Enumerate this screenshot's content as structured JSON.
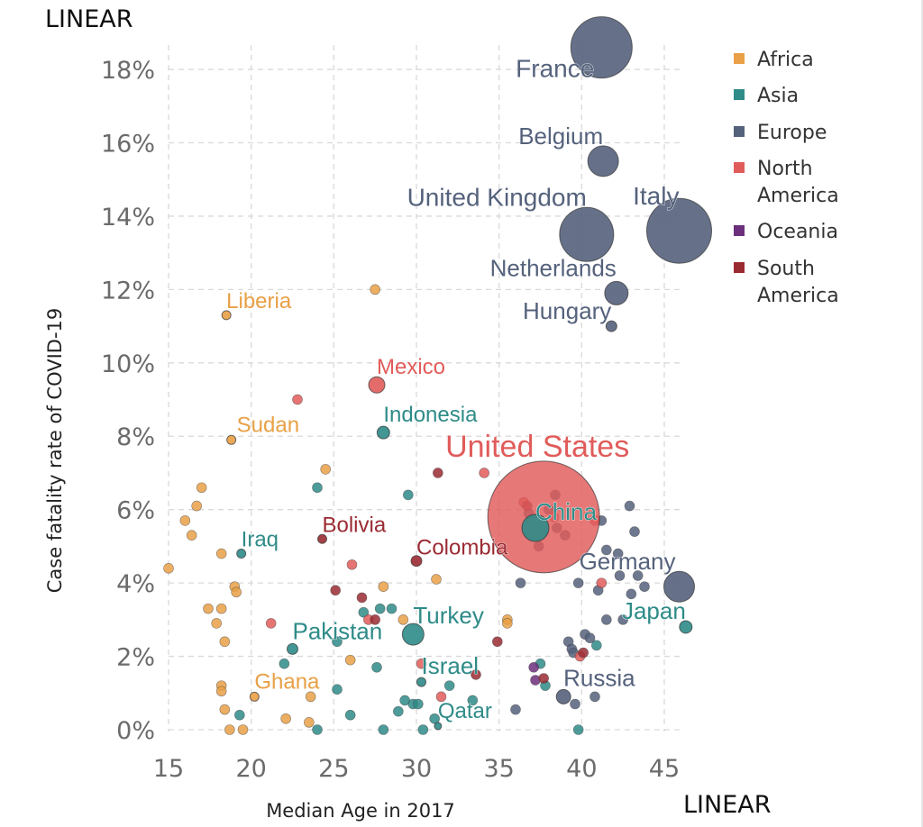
{
  "chart_data": {
    "type": "scatter",
    "xlabel": "Median Age in 2017",
    "ylabel": "Case fatality rate of COVID-19",
    "x_scale_label": "LINEAR",
    "y_scale_label": "LINEAR",
    "xlim": [
      15,
      46.5
    ],
    "ylim": [
      0,
      18.5
    ],
    "x_ticks": [
      "15",
      "20",
      "25",
      "30",
      "35",
      "40",
      "45"
    ],
    "x_tick_values": [
      15,
      20,
      25,
      30,
      35,
      40,
      45
    ],
    "y_ticks": [
      "0%",
      "2%",
      "4%",
      "6%",
      "8%",
      "10%",
      "12%",
      "14%",
      "16%",
      "18%"
    ],
    "y_tick_values": [
      0,
      2,
      4,
      6,
      8,
      10,
      12,
      14,
      16,
      18
    ],
    "grid": true,
    "legend_position": "right",
    "colors": {
      "Africa": "#e9a046",
      "Asia": "#2e8b88",
      "Europe": "#55627c",
      "North America": "#e05c5a",
      "Oceania": "#6d2f7c",
      "South America": "#9a2a32"
    },
    "legend": [
      {
        "label": "Africa",
        "region": "Africa"
      },
      {
        "label": "Asia",
        "region": "Asia"
      },
      {
        "label": "Europe",
        "region": "Europe"
      },
      {
        "label": "North",
        "label2": "America",
        "region": "North America"
      },
      {
        "label": "Oceania",
        "region": "Oceania"
      },
      {
        "label": "South",
        "label2": "America",
        "region": "South America"
      }
    ],
    "labeled_points": [
      {
        "name": "France",
        "region": "Europe",
        "age": 41.2,
        "cfr": 18.6,
        "size": 34
      },
      {
        "name": "Belgium",
        "region": "Europe",
        "age": 41.3,
        "cfr": 15.5,
        "size": 17
      },
      {
        "name": "Italy",
        "region": "Europe",
        "age": 45.9,
        "cfr": 13.6,
        "size": 36
      },
      {
        "name": "United Kingdom",
        "region": "Europe",
        "age": 40.3,
        "cfr": 13.5,
        "size": 30
      },
      {
        "name": "Netherlands",
        "region": "Europe",
        "age": 42.1,
        "cfr": 11.9,
        "size": 13
      },
      {
        "name": "Hungary",
        "region": "Europe",
        "age": 41.8,
        "cfr": 11.0,
        "size": 6
      },
      {
        "name": "Liberia",
        "region": "Africa",
        "age": 18.5,
        "cfr": 11.3,
        "size": 5
      },
      {
        "name": "Mexico",
        "region": "North America",
        "age": 27.6,
        "cfr": 9.4,
        "size": 9
      },
      {
        "name": "Indonesia",
        "region": "Asia",
        "age": 28.0,
        "cfr": 8.1,
        "size": 7
      },
      {
        "name": "Sudan",
        "region": "Africa",
        "age": 18.8,
        "cfr": 7.9,
        "size": 5
      },
      {
        "name": "United States",
        "region": "North America",
        "age": 37.7,
        "cfr": 5.8,
        "size": 62
      },
      {
        "name": "China",
        "region": "Asia",
        "age": 37.2,
        "cfr": 5.5,
        "size": 15
      },
      {
        "name": "Bolivia",
        "region": "South America",
        "age": 24.3,
        "cfr": 5.2,
        "size": 5
      },
      {
        "name": "Iraq",
        "region": "Asia",
        "age": 19.4,
        "cfr": 4.8,
        "size": 5
      },
      {
        "name": "Colombia",
        "region": "South America",
        "age": 30.0,
        "cfr": 4.6,
        "size": 6
      },
      {
        "name": "Germany",
        "region": "Europe",
        "age": 45.9,
        "cfr": 3.9,
        "size": 17
      },
      {
        "name": "Turkey",
        "region": "Asia",
        "age": 29.8,
        "cfr": 2.6,
        "size": 12
      },
      {
        "name": "Japan",
        "region": "Asia",
        "age": 46.3,
        "cfr": 2.8,
        "size": 7
      },
      {
        "name": "Pakistan",
        "region": "Asia",
        "age": 22.5,
        "cfr": 2.2,
        "size": 6
      },
      {
        "name": "Israel",
        "region": "Asia",
        "age": 30.3,
        "cfr": 1.3,
        "size": 5
      },
      {
        "name": "Russia",
        "region": "Europe",
        "age": 38.9,
        "cfr": 0.9,
        "size": 8
      },
      {
        "name": "Ghana",
        "region": "Africa",
        "age": 20.2,
        "cfr": 0.9,
        "size": 5
      },
      {
        "name": "Qatar",
        "region": "Asia",
        "age": 31.3,
        "cfr": 0.1,
        "size": 4
      }
    ],
    "other_points": [
      {
        "region": "Africa",
        "age": 15.0,
        "cfr": 4.4
      },
      {
        "region": "Africa",
        "age": 16.0,
        "cfr": 5.7
      },
      {
        "region": "Africa",
        "age": 16.4,
        "cfr": 5.3
      },
      {
        "region": "Africa",
        "age": 16.7,
        "cfr": 6.1
      },
      {
        "region": "Africa",
        "age": 17.0,
        "cfr": 6.6
      },
      {
        "region": "Africa",
        "age": 17.4,
        "cfr": 3.3
      },
      {
        "region": "Africa",
        "age": 17.9,
        "cfr": 2.9
      },
      {
        "region": "Africa",
        "age": 18.2,
        "cfr": 4.8
      },
      {
        "region": "Africa",
        "age": 18.2,
        "cfr": 3.3
      },
      {
        "region": "Africa",
        "age": 18.4,
        "cfr": 2.4
      },
      {
        "region": "Africa",
        "age": 18.2,
        "cfr": 1.2
      },
      {
        "region": "Africa",
        "age": 18.2,
        "cfr": 1.05
      },
      {
        "region": "Africa",
        "age": 18.4,
        "cfr": 0.55
      },
      {
        "region": "Africa",
        "age": 18.7,
        "cfr": 0.0
      },
      {
        "region": "Africa",
        "age": 19.0,
        "cfr": 3.9
      },
      {
        "region": "Africa",
        "age": 19.1,
        "cfr": 3.75
      },
      {
        "region": "Africa",
        "age": 19.5,
        "cfr": 0.0
      },
      {
        "region": "Africa",
        "age": 22.1,
        "cfr": 0.3
      },
      {
        "region": "Africa",
        "age": 23.6,
        "cfr": 0.9
      },
      {
        "region": "Africa",
        "age": 23.5,
        "cfr": 0.2
      },
      {
        "region": "Africa",
        "age": 24.5,
        "cfr": 7.1
      },
      {
        "region": "Africa",
        "age": 26.0,
        "cfr": 1.9
      },
      {
        "region": "Africa",
        "age": 27.5,
        "cfr": 12.0
      },
      {
        "region": "Africa",
        "age": 28.0,
        "cfr": 3.9
      },
      {
        "region": "Africa",
        "age": 29.2,
        "cfr": 3.0
      },
      {
        "region": "Africa",
        "age": 31.2,
        "cfr": 4.1
      },
      {
        "region": "Africa",
        "age": 35.5,
        "cfr": 3.0
      },
      {
        "region": "Africa",
        "age": 35.5,
        "cfr": 2.9
      },
      {
        "region": "Asia",
        "age": 19.3,
        "cfr": 0.4
      },
      {
        "region": "Asia",
        "age": 22.0,
        "cfr": 1.8
      },
      {
        "region": "Asia",
        "age": 24.0,
        "cfr": 0.0
      },
      {
        "region": "Asia",
        "age": 24.0,
        "cfr": 6.6
      },
      {
        "region": "Asia",
        "age": 25.2,
        "cfr": 1.1
      },
      {
        "region": "Asia",
        "age": 25.2,
        "cfr": 2.4
      },
      {
        "region": "Asia",
        "age": 26.0,
        "cfr": 0.4
      },
      {
        "region": "Asia",
        "age": 26.8,
        "cfr": 3.2
      },
      {
        "region": "Asia",
        "age": 27.6,
        "cfr": 1.7
      },
      {
        "region": "Asia",
        "age": 27.8,
        "cfr": 3.3
      },
      {
        "region": "Asia",
        "age": 28.0,
        "cfr": 0.0
      },
      {
        "region": "Asia",
        "age": 28.5,
        "cfr": 3.3
      },
      {
        "region": "Asia",
        "age": 28.9,
        "cfr": 0.5
      },
      {
        "region": "Asia",
        "age": 29.3,
        "cfr": 0.8
      },
      {
        "region": "Asia",
        "age": 29.8,
        "cfr": 0.7
      },
      {
        "region": "Asia",
        "age": 30.1,
        "cfr": 0.7
      },
      {
        "region": "Asia",
        "age": 30.4,
        "cfr": 0.0
      },
      {
        "region": "Asia",
        "age": 31.1,
        "cfr": 0.3
      },
      {
        "region": "Asia",
        "age": 32.0,
        "cfr": 1.2
      },
      {
        "region": "Asia",
        "age": 33.4,
        "cfr": 0.8
      },
      {
        "region": "Asia",
        "age": 37.5,
        "cfr": 1.8
      },
      {
        "region": "Asia",
        "age": 37.8,
        "cfr": 1.2
      },
      {
        "region": "Asia",
        "age": 39.8,
        "cfr": 0.0
      },
      {
        "region": "Asia",
        "age": 40.9,
        "cfr": 2.3
      },
      {
        "region": "Asia",
        "age": 29.5,
        "cfr": 6.4
      },
      {
        "region": "Europe",
        "age": 36.0,
        "cfr": 0.55
      },
      {
        "region": "Europe",
        "age": 36.3,
        "cfr": 4.0
      },
      {
        "region": "Europe",
        "age": 36.8,
        "cfr": 5.9
      },
      {
        "region": "Europe",
        "age": 37.4,
        "cfr": 5.0
      },
      {
        "region": "Europe",
        "age": 38.0,
        "cfr": 6.0
      },
      {
        "region": "Europe",
        "age": 38.4,
        "cfr": 6.4
      },
      {
        "region": "Europe",
        "age": 38.5,
        "cfr": 5.5
      },
      {
        "region": "Europe",
        "age": 39.0,
        "cfr": 5.3
      },
      {
        "region": "Europe",
        "age": 39.2,
        "cfr": 2.4
      },
      {
        "region": "Europe",
        "age": 39.4,
        "cfr": 2.2
      },
      {
        "region": "Europe",
        "age": 39.5,
        "cfr": 2.1
      },
      {
        "region": "Europe",
        "age": 39.6,
        "cfr": 0.7
      },
      {
        "region": "Europe",
        "age": 39.8,
        "cfr": 4.0
      },
      {
        "region": "Europe",
        "age": 40.2,
        "cfr": 2.6
      },
      {
        "region": "Europe",
        "age": 40.5,
        "cfr": 2.5
      },
      {
        "region": "Europe",
        "age": 40.8,
        "cfr": 0.9
      },
      {
        "region": "Europe",
        "age": 41.0,
        "cfr": 3.8
      },
      {
        "region": "Europe",
        "age": 41.2,
        "cfr": 5.7
      },
      {
        "region": "Europe",
        "age": 41.5,
        "cfr": 4.9
      },
      {
        "region": "Europe",
        "age": 41.5,
        "cfr": 3.0
      },
      {
        "region": "Europe",
        "age": 42.2,
        "cfr": 4.8
      },
      {
        "region": "Europe",
        "age": 42.3,
        "cfr": 4.2
      },
      {
        "region": "Europe",
        "age": 42.5,
        "cfr": 3.0
      },
      {
        "region": "Europe",
        "age": 42.9,
        "cfr": 6.1
      },
      {
        "region": "Europe",
        "age": 43.0,
        "cfr": 3.7
      },
      {
        "region": "Europe",
        "age": 43.2,
        "cfr": 5.4
      },
      {
        "region": "Europe",
        "age": 43.4,
        "cfr": 4.2
      },
      {
        "region": "Europe",
        "age": 43.8,
        "cfr": 3.9
      },
      {
        "region": "North America",
        "age": 21.2,
        "cfr": 2.9
      },
      {
        "region": "North America",
        "age": 26.1,
        "cfr": 4.5
      },
      {
        "region": "North America",
        "age": 27.1,
        "cfr": 3.0
      },
      {
        "region": "North America",
        "age": 30.3,
        "cfr": 1.8
      },
      {
        "region": "North America",
        "age": 31.5,
        "cfr": 0.9
      },
      {
        "region": "North America",
        "age": 34.1,
        "cfr": 7.0
      },
      {
        "region": "North America",
        "age": 36.5,
        "cfr": 6.2
      },
      {
        "region": "North America",
        "age": 38.3,
        "cfr": 5.8
      },
      {
        "region": "North America",
        "age": 39.9,
        "cfr": 2.0
      },
      {
        "region": "North America",
        "age": 40.8,
        "cfr": 5.7
      },
      {
        "region": "North America",
        "age": 41.2,
        "cfr": 4.0
      },
      {
        "region": "North America",
        "age": 22.8,
        "cfr": 9.0
      },
      {
        "region": "Oceania",
        "age": 37.1,
        "cfr": 1.7
      },
      {
        "region": "Oceania",
        "age": 37.2,
        "cfr": 1.35
      },
      {
        "region": "South America",
        "age": 25.1,
        "cfr": 3.8
      },
      {
        "region": "South America",
        "age": 26.7,
        "cfr": 3.6
      },
      {
        "region": "South America",
        "age": 27.5,
        "cfr": 3.0
      },
      {
        "region": "South America",
        "age": 31.3,
        "cfr": 7.0
      },
      {
        "region": "South America",
        "age": 33.6,
        "cfr": 1.5
      },
      {
        "region": "South America",
        "age": 34.9,
        "cfr": 2.4
      },
      {
        "region": "South America",
        "age": 36.7,
        "cfr": 6.1
      },
      {
        "region": "South America",
        "age": 37.7,
        "cfr": 1.4
      },
      {
        "region": "South America",
        "age": 40.1,
        "cfr": 2.1
      }
    ]
  }
}
